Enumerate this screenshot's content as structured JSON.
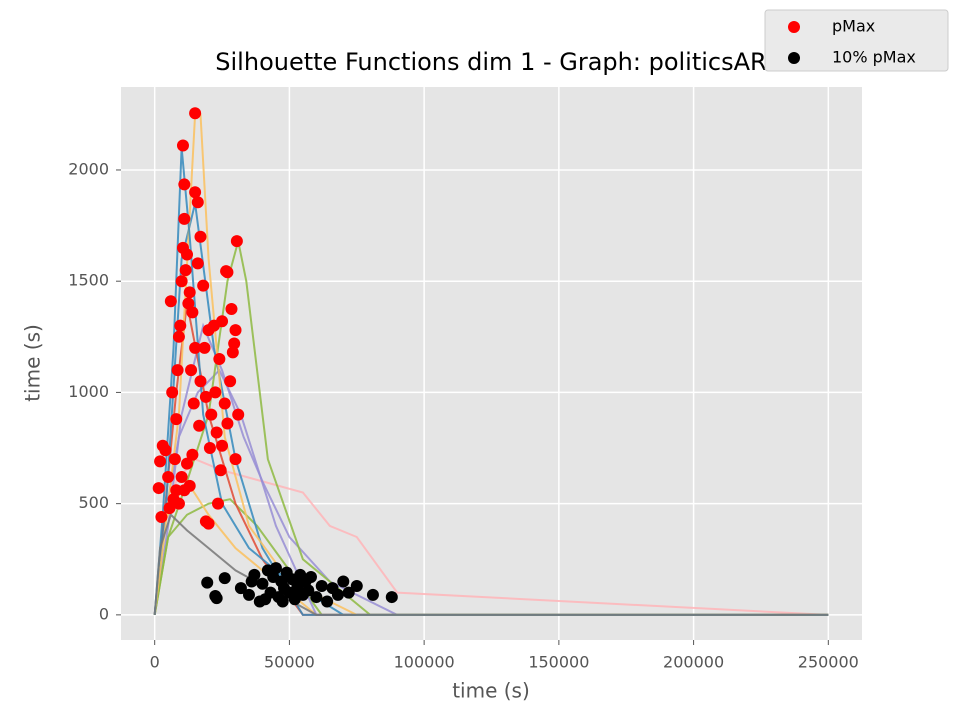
{
  "chart_data": {
    "type": "scatter",
    "title": "Silhouette Functions dim 1 - Graph:  politicsAR",
    "xlabel": "time (s)",
    "ylabel": "time (s)",
    "xlim": [
      -12500,
      262500
    ],
    "ylim": [
      -113,
      2373
    ],
    "xticks": [
      0,
      50000,
      100000,
      150000,
      200000,
      250000
    ],
    "yticks": [
      0,
      500,
      1000,
      1500,
      2000
    ],
    "grid": true,
    "legend": "upper right",
    "lines": [
      {
        "color": "#FFB5B8",
        "x": [
          0,
          3000,
          8000,
          15000,
          25000,
          40000,
          55000,
          65000,
          75000,
          90000,
          250000
        ],
        "values": [
          0,
          400,
          600,
          700,
          650,
          600,
          550,
          400,
          350,
          100,
          0
        ]
      },
      {
        "color": "#988ED5",
        "x": [
          0,
          5000,
          10000,
          18000,
          25000,
          33000,
          40000,
          50000,
          65000,
          90000,
          250000
        ],
        "values": [
          0,
          400,
          900,
          1300,
          1100,
          800,
          600,
          350,
          150,
          0,
          0
        ]
      },
      {
        "color": "#8EBA42",
        "x": [
          0,
          5000,
          12000,
          20000,
          28000,
          38000,
          50000,
          62000,
          250000
        ],
        "values": [
          0,
          350,
          450,
          500,
          520,
          400,
          200,
          0,
          0
        ]
      },
      {
        "color": "#FBC15E",
        "x": [
          0,
          3000,
          7000,
          12000,
          20000,
          30000,
          45000,
          60000,
          250000
        ],
        "values": [
          0,
          400,
          500,
          600,
          450,
          300,
          150,
          0,
          0
        ]
      },
      {
        "color": "#988ED5",
        "x": [
          0,
          4000,
          9000,
          16000,
          24000,
          32000,
          45000,
          60000,
          250000
        ],
        "values": [
          0,
          450,
          800,
          1000,
          1100,
          900,
          400,
          0,
          0
        ]
      },
      {
        "color": "#E24A33",
        "x": [
          0,
          4000,
          8000,
          12000,
          20000,
          30000,
          40000,
          55000,
          250000
        ],
        "values": [
          0,
          500,
          1000,
          1400,
          900,
          500,
          250,
          0,
          0
        ]
      },
      {
        "color": "#348ABD",
        "x": [
          0,
          4000,
          10000,
          15000,
          22000,
          30000,
          40000,
          55000,
          250000
        ],
        "values": [
          0,
          450,
          1600,
          1850,
          1200,
          700,
          300,
          0,
          0
        ]
      },
      {
        "color": "#8EBA42",
        "x": [
          0,
          5000,
          12000,
          20000,
          27000,
          31000,
          34000,
          42000,
          55000,
          80000,
          250000
        ],
        "values": [
          0,
          350,
          600,
          900,
          1500,
          1680,
          1500,
          700,
          250,
          0,
          0
        ]
      },
      {
        "color": "#FBC15E",
        "x": [
          0,
          4000,
          9000,
          15000,
          17000,
          20000,
          26000,
          35000,
          50000,
          75000,
          250000
        ],
        "values": [
          0,
          400,
          900,
          2250,
          2250,
          1600,
          800,
          400,
          150,
          0,
          0
        ]
      },
      {
        "color": "#348ABD",
        "x": [
          0,
          3000,
          7000,
          10000,
          13000,
          18000,
          25000,
          35000,
          50000,
          70000,
          250000
        ],
        "values": [
          0,
          450,
          1200,
          2100,
          1700,
          900,
          500,
          300,
          150,
          0,
          0
        ]
      },
      {
        "color": "#777777",
        "x": [
          0,
          2000,
          6000,
          12000,
          20000,
          30000,
          45000,
          60000,
          250000
        ],
        "values": [
          0,
          300,
          450,
          380,
          300,
          200,
          100,
          0,
          0
        ]
      }
    ],
    "series": [
      {
        "name": "pMax",
        "color": "#FF0000",
        "x": [
          15000,
          10500,
          11000,
          15000,
          16000,
          30500,
          26500,
          27000,
          28500,
          30000,
          17000,
          4000,
          2500,
          1500,
          2000,
          3000,
          5000,
          6000,
          7000,
          8000,
          9000,
          10000,
          11000,
          12000,
          13000,
          14000,
          15000,
          16000,
          17000,
          18000,
          19000,
          20000,
          21000,
          22000,
          23000,
          24000,
          25000,
          26000,
          27000,
          28000,
          29000,
          30000,
          31000,
          6500,
          7500,
          8500,
          9500,
          10500,
          11500,
          12500,
          13500,
          14500,
          16500,
          18500,
          20500,
          22500,
          24500,
          19000,
          20000,
          5500,
          8000,
          10000,
          12000,
          14000,
          9000,
          11000,
          13000,
          25000,
          29500,
          23500
        ],
        "values": [
          2255,
          2110,
          1935,
          1900,
          1855,
          1680,
          1545,
          1540,
          1375,
          1280,
          1700,
          740,
          440,
          570,
          690,
          760,
          620,
          1410,
          520,
          880,
          1250,
          1500,
          1780,
          1620,
          1450,
          1360,
          1200,
          1580,
          1050,
          1480,
          980,
          1280,
          900,
          1300,
          820,
          1150,
          760,
          950,
          860,
          1050,
          1180,
          700,
          900,
          1000,
          700,
          1100,
          1300,
          1650,
          1550,
          1400,
          1100,
          950,
          850,
          1200,
          750,
          1000,
          650,
          420,
          410,
          480,
          560,
          620,
          680,
          720,
          500,
          560,
          580,
          1320,
          1220,
          500
        ]
      },
      {
        "name": "10% pMax",
        "color": "#000000",
        "x": [
          19500,
          22500,
          23000,
          26000,
          32000,
          35000,
          37000,
          39000,
          40000,
          42000,
          43000,
          44000,
          45000,
          46000,
          47000,
          48000,
          49000,
          50000,
          51000,
          52000,
          53000,
          54000,
          55000,
          56000,
          57000,
          58000,
          60000,
          62000,
          64000,
          66000,
          68000,
          70000,
          72000,
          75000,
          81000,
          88000,
          41000,
          47500,
          52500,
          36000
        ],
        "values": [
          145,
          85,
          75,
          165,
          120,
          90,
          180,
          60,
          140,
          200,
          100,
          170,
          210,
          80,
          150,
          120,
          190,
          100,
          160,
          70,
          130,
          180,
          90,
          150,
          110,
          170,
          80,
          130,
          60,
          120,
          90,
          150,
          100,
          130,
          90,
          80,
          70,
          60,
          110,
          150
        ]
      }
    ]
  }
}
